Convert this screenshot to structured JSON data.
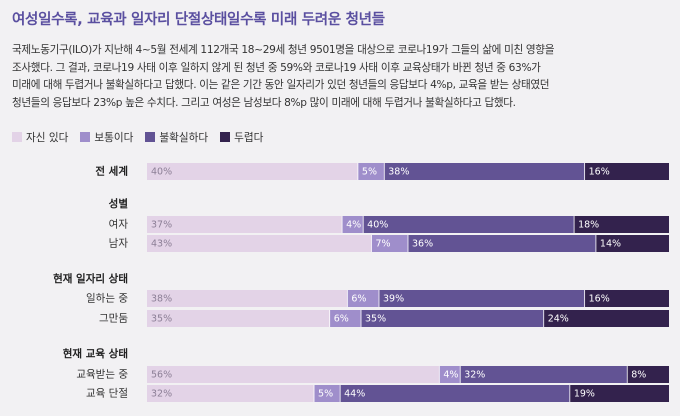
{
  "title": "여성일수록, 교육과 일자리 단절상태일수록 미래 두려운 청년들",
  "description": [
    "국제노동기구(ILO)가 지난해 4~5월 전세계 112개국 18~29세 청년 9501명을 대상으로 코로나19가 그들의 삶에 미친 영향을",
    "조사했다. 그 결과, 코로나19 사태 이후 일하지 않게 된 청년 중 59%와 코로나19 사태 이후 교육상태가 바뀐 청년 중 63%가",
    "미래에 대해 두렵거나 불확실하다고 답했다. 이는 같은 기간 동안 일자리가 있던 청년들의 응답보다 4%p, 교육을 받는 상태였던",
    "청년들의 응답보다 23%p 높은 수치다. 그리고 여성은 남성보다 8%p 많이 미래에 대해 두렵거나 불확실하다고 답했다."
  ],
  "chart_data": {
    "type": "bar",
    "orientation": "horizontal-stacked-100",
    "series": [
      {
        "name": "자신 있다",
        "color": "#e3d3e7",
        "label_color": "#8c7f96"
      },
      {
        "name": "보통이다",
        "color": "#9f8ecb",
        "label_color": "#ffffff"
      },
      {
        "name": "불확실하다",
        "color": "#625394",
        "label_color": "#ffffff"
      },
      {
        "name": "두렵다",
        "color": "#33224d",
        "label_color": "#ffffff"
      }
    ],
    "rows": [
      {
        "group": "전 세계",
        "label": "",
        "values": [
          40,
          5,
          38,
          16
        ],
        "labels": [
          "40%",
          "5%",
          "38%",
          "16%"
        ]
      },
      {
        "group": "성별",
        "label": "여자",
        "values": [
          37,
          4,
          40,
          18
        ],
        "labels": [
          "37%",
          "4%",
          "40%",
          "18%"
        ]
      },
      {
        "group": "성별",
        "label": "남자",
        "values": [
          43,
          7,
          36,
          14
        ],
        "labels": [
          "43%",
          "7%",
          "36%",
          "14%"
        ]
      },
      {
        "group": "현재 일자리 상태",
        "label": "일하는 중",
        "values": [
          38,
          6,
          39,
          16
        ],
        "labels": [
          "38%",
          "6%",
          "39%",
          "16%"
        ]
      },
      {
        "group": "현재 일자리 상태",
        "label": "그만둠",
        "values": [
          35,
          6,
          35,
          24
        ],
        "labels": [
          "35%",
          "6%",
          "35%",
          "24%"
        ]
      },
      {
        "group": "현재 교육 상태",
        "label": "교육받는 중",
        "values": [
          56,
          4,
          32,
          8
        ],
        "labels": [
          "56%",
          "4%",
          "32%",
          "8%"
        ]
      },
      {
        "group": "현재 교육 상태",
        "label": "교육 단절",
        "values": [
          32,
          5,
          44,
          19
        ],
        "labels": [
          "32%",
          "5%",
          "44%",
          "19%"
        ]
      }
    ],
    "groups": [
      "전 세계",
      "성별",
      "현재 일자리 상태",
      "현재 교육 상태"
    ]
  }
}
